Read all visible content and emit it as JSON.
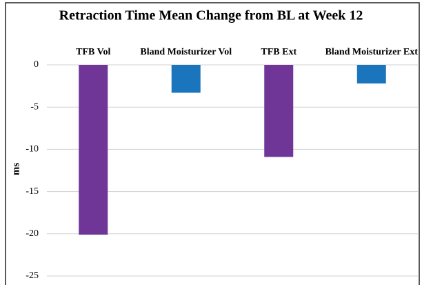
{
  "chart_data": {
    "type": "bar",
    "title": "Retraction Time Mean Change from BL at Week 12",
    "y_label": "ms",
    "categories": [
      "TFB Vol",
      "Bland Moisturizer Vol",
      "TFB Ext",
      "Bland Moisturizer Ext"
    ],
    "values": [
      -20.1,
      -3.3,
      -10.9,
      -2.2
    ],
    "colors": [
      "#6f3597",
      "#1a75bc",
      "#6f3597",
      "#1a75bc"
    ],
    "ylim": [
      -25,
      0
    ],
    "yticks": [
      0,
      -5,
      -10,
      -15,
      -20,
      -25
    ],
    "grid": true
  }
}
